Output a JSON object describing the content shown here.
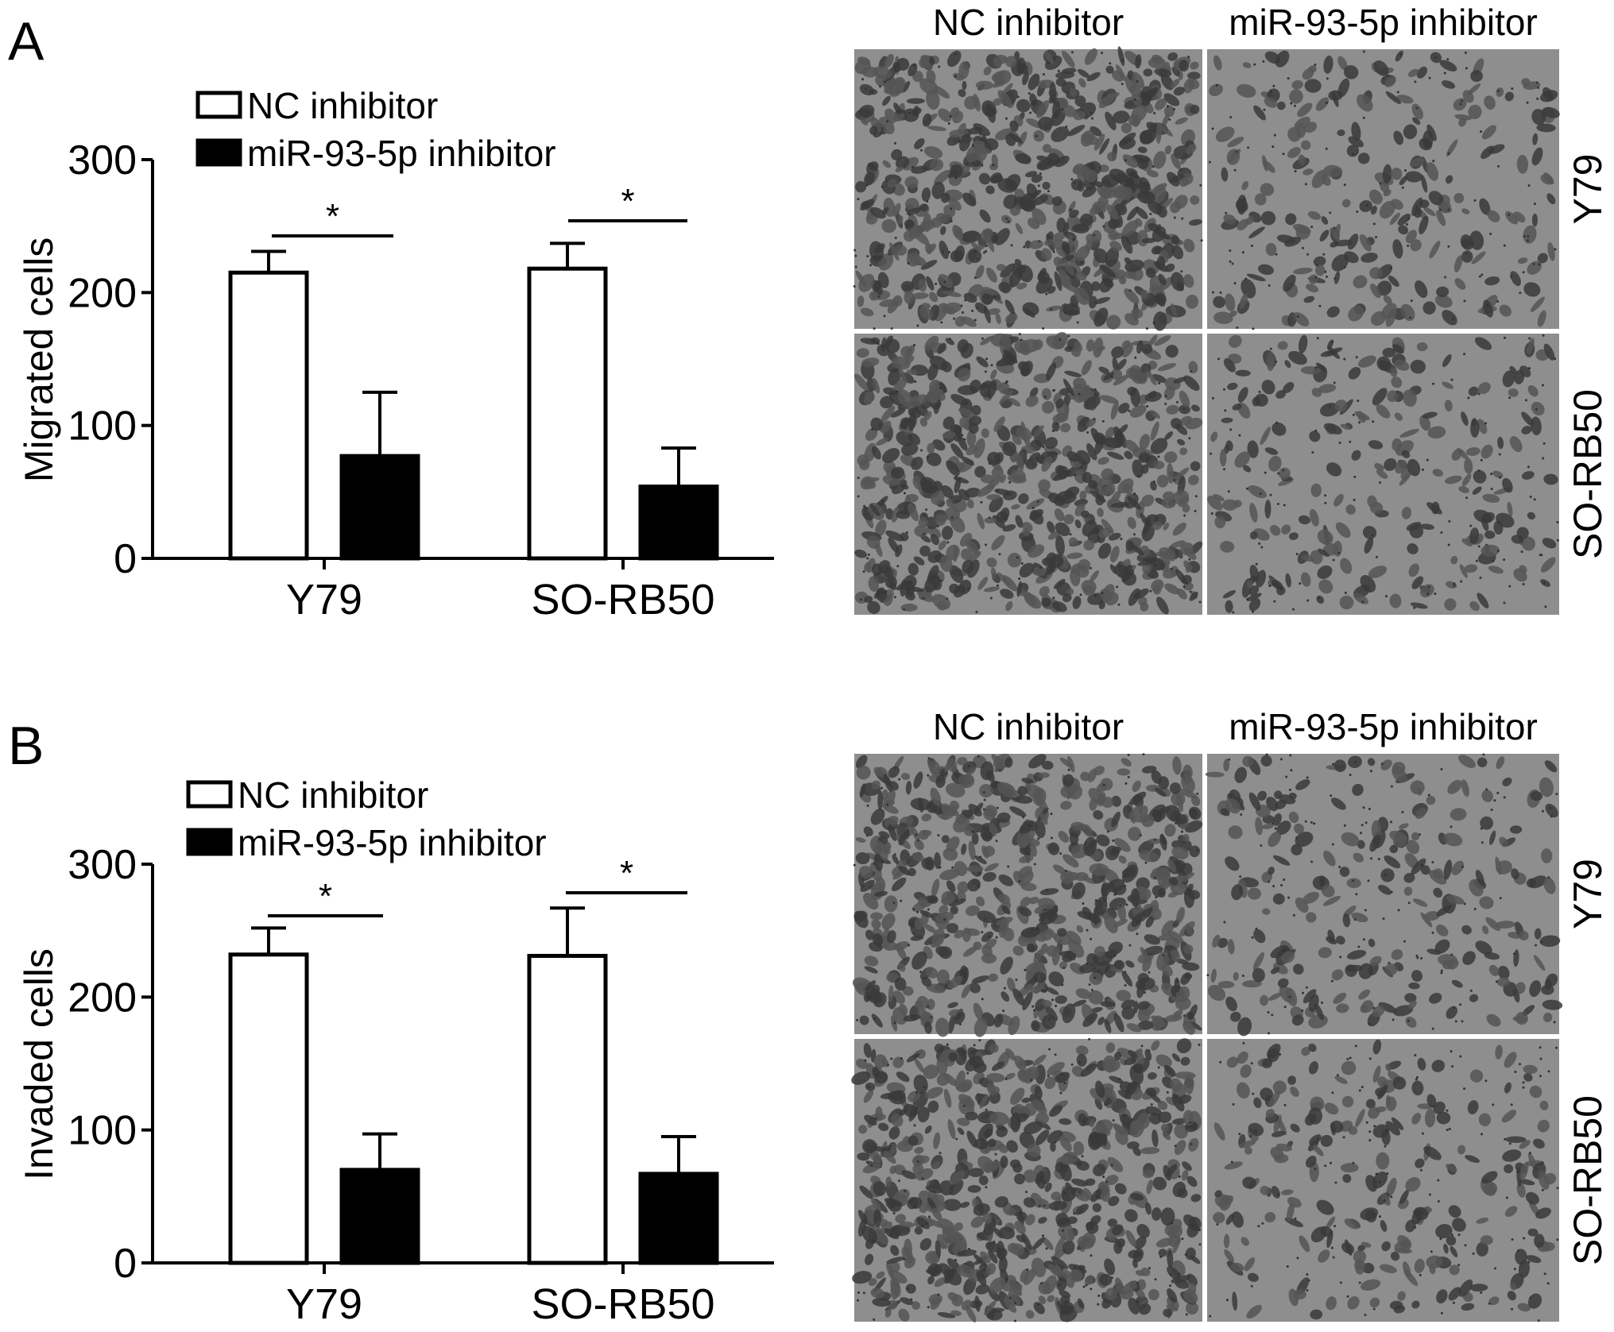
{
  "panels": [
    {
      "letter": "A",
      "image_columns": [
        "NC inhibitor",
        "miR-93-5p inhibitor"
      ],
      "image_rows": [
        "Y79",
        "SO-RB50"
      ]
    },
    {
      "letter": "B",
      "image_columns": [
        "NC inhibitor",
        "miR-93-5p inhibitor"
      ],
      "image_rows": [
        "Y79",
        "SO-RB50"
      ]
    }
  ],
  "chart_data": [
    {
      "type": "bar",
      "title": "",
      "xlabel": "",
      "ylabel": "Migrated cells",
      "ylim": [
        0,
        300
      ],
      "yticks": [
        "0",
        "100",
        "200",
        "300"
      ],
      "categories": [
        "Y79",
        "SO-RB50"
      ],
      "legend_position": "top-left",
      "series": [
        {
          "name": "NC inhibitor",
          "color": "#ffffff",
          "values": [
            215,
            218
          ],
          "error": [
            16,
            19
          ]
        },
        {
          "name": "miR-93-5p inhibitor",
          "color": "#000000",
          "values": [
            77,
            54
          ],
          "error": [
            48,
            29
          ]
        }
      ],
      "significance": [
        "*",
        "*"
      ]
    },
    {
      "type": "bar",
      "title": "",
      "xlabel": "",
      "ylabel": "Invaded cells",
      "ylim": [
        0,
        300
      ],
      "yticks": [
        "0",
        "100",
        "200",
        "300"
      ],
      "categories": [
        "Y79",
        "SO-RB50"
      ],
      "legend_position": "top-left",
      "series": [
        {
          "name": "NC inhibitor",
          "color": "#ffffff",
          "values": [
            232,
            231
          ],
          "error": [
            20,
            36
          ]
        },
        {
          "name": "miR-93-5p inhibitor",
          "color": "#000000",
          "values": [
            70,
            67
          ],
          "error": [
            27,
            28
          ]
        }
      ],
      "significance": [
        "*",
        "*"
      ]
    }
  ]
}
